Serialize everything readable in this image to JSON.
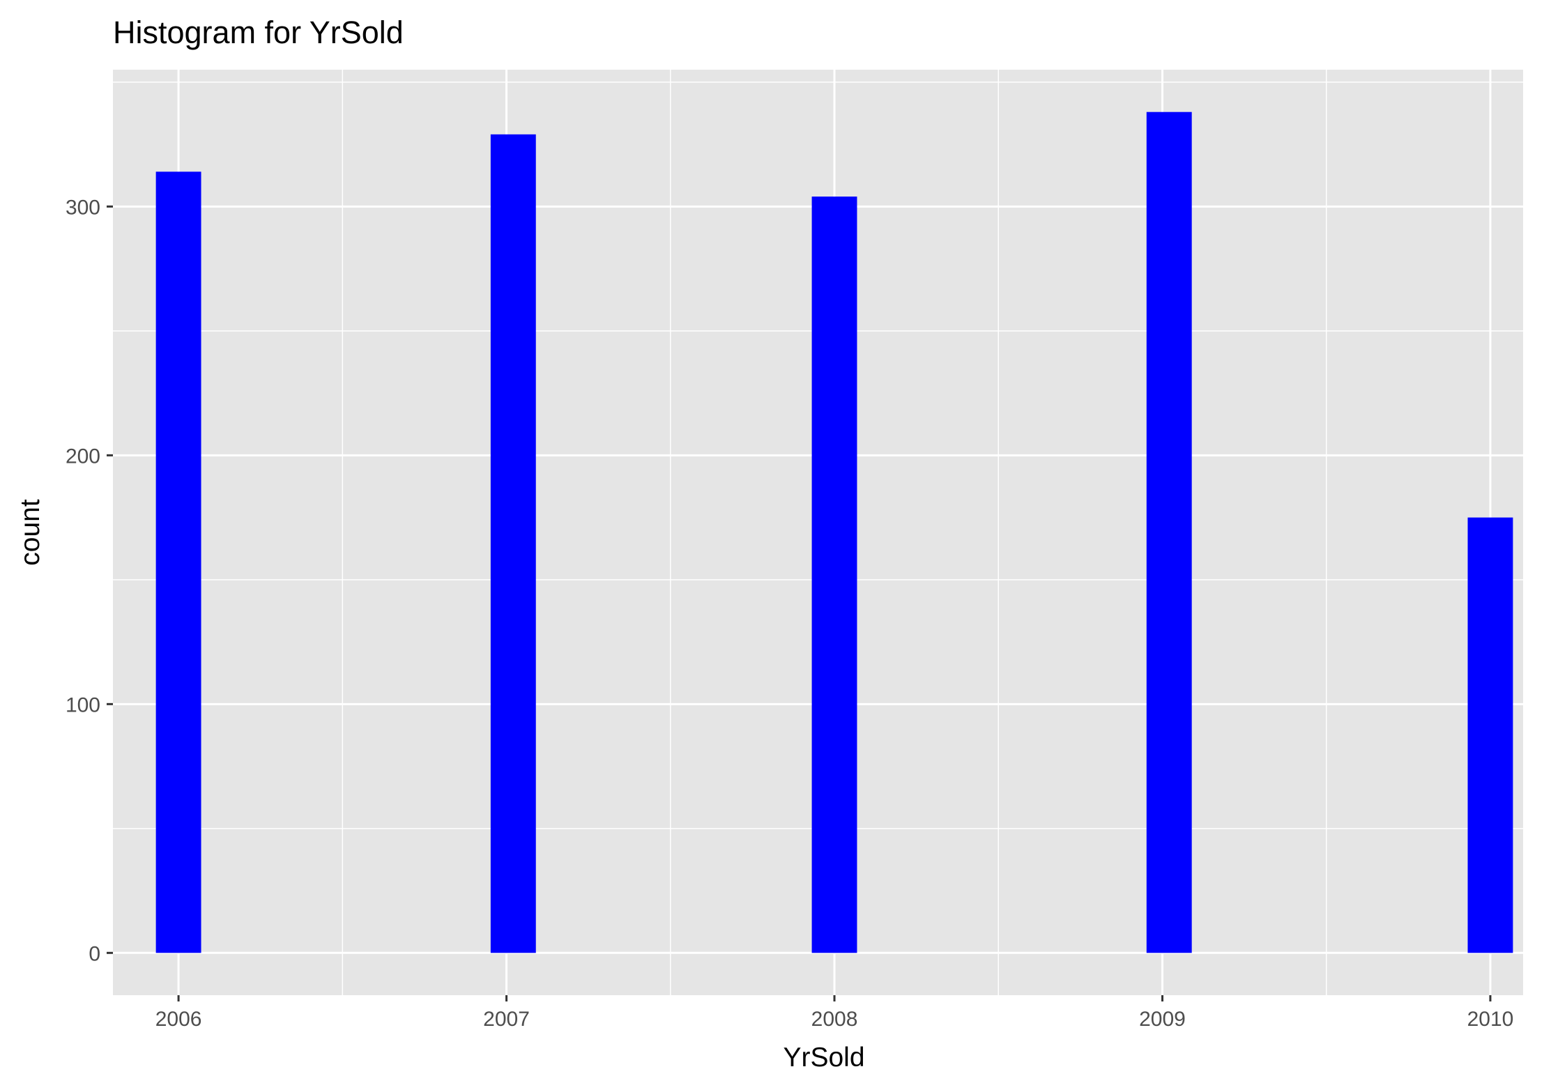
{
  "chart_data": {
    "type": "bar",
    "title": "Histogram for YrSold",
    "xlabel": "YrSold",
    "ylabel": "count",
    "categories": [
      "2006",
      "2007",
      "2008",
      "2009",
      "2010"
    ],
    "series": [
      {
        "values": [
          314,
          329,
          304,
          338,
          175
        ]
      }
    ],
    "x_ticks": [
      "2006",
      "2007",
      "2008",
      "2009",
      "2010"
    ],
    "y_ticks": [
      0,
      100,
      200,
      300
    ],
    "xlim": [
      2005.8,
      2010.1
    ],
    "ylim": [
      -17,
      355
    ],
    "grid": true,
    "panel_color": "#e5e5e5",
    "bar_color": "#0000ff"
  }
}
